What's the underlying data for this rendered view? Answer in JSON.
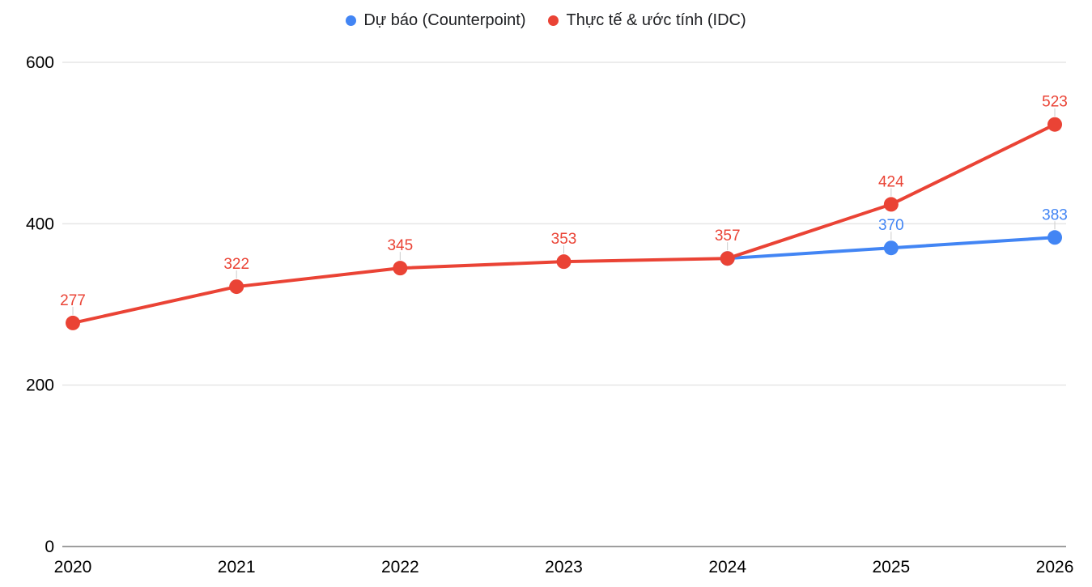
{
  "page": {
    "background": "#ffffff"
  },
  "legend": {
    "items": [
      {
        "label": "Dự báo (Counterpoint)",
        "color": "#4285F4"
      },
      {
        "label": "Thực tế & ước tính (IDC)",
        "color": "#EA4335"
      }
    ]
  },
  "chart_data": {
    "type": "line",
    "title": "",
    "xlabel": "",
    "ylabel": "",
    "x_categories": [
      2020,
      2021,
      2022,
      2023,
      2024,
      2025,
      2026
    ],
    "series": [
      {
        "name": "Dự báo (Counterpoint)",
        "color": "#4285F4",
        "points": [
          {
            "x": 2024,
            "y": 357,
            "label": null
          },
          {
            "x": 2025,
            "y": 370,
            "label": "370"
          },
          {
            "x": 2026,
            "y": 383,
            "label": "383"
          }
        ]
      },
      {
        "name": "Thực tế & ước tính (IDC)",
        "color": "#EA4335",
        "points": [
          {
            "x": 2020,
            "y": 277,
            "label": "277"
          },
          {
            "x": 2021,
            "y": 322,
            "label": "322"
          },
          {
            "x": 2022,
            "y": 345,
            "label": "345"
          },
          {
            "x": 2023,
            "y": 353,
            "label": "353"
          },
          {
            "x": 2024,
            "y": 357,
            "label": "357"
          },
          {
            "x": 2025,
            "y": 424,
            "label": "424"
          },
          {
            "x": 2026,
            "y": 523,
            "label": "523"
          }
        ]
      }
    ],
    "ylim": [
      0,
      600
    ],
    "yticks": [
      0,
      200,
      400,
      600
    ],
    "grid": true,
    "legend_position": "top",
    "colors": {
      "gridline": "#e6e6e6",
      "axis": "#9e9e9e",
      "tick_text": "#000000",
      "label_connector": "#cccccc"
    }
  }
}
